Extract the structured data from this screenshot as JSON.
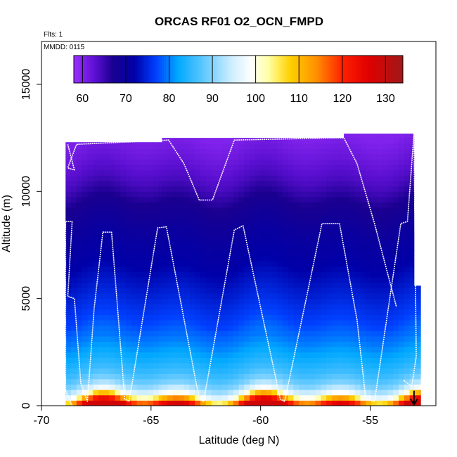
{
  "chart_data": {
    "type": "heatmap",
    "title": "ORCAS RF01 O2_OCN_FMPD",
    "xlabel": "Latitude (deg N)",
    "ylabel": "Altitude (m)",
    "xlim": [
      -70,
      -52
    ],
    "ylim": [
      0,
      17000
    ],
    "x_ticks": [
      -70,
      -65,
      -60,
      -55
    ],
    "x_tick_labels": [
      "-70",
      "-65",
      "-60",
      "-55"
    ],
    "y_ticks": [
      0,
      5000,
      10000,
      15000
    ],
    "y_tick_labels": [
      "0",
      "5000",
      "10000",
      "15000"
    ],
    "flights_label": "Flts: 1",
    "date_label": "MMDD: 0115",
    "colorbar": {
      "min": 58,
      "max": 134,
      "ticks": [
        60,
        70,
        80,
        90,
        100,
        110,
        120,
        130
      ],
      "tick_labels": [
        "60",
        "70",
        "80",
        "90",
        "100",
        "110",
        "120",
        "130"
      ],
      "stops": [
        {
          "value": 58,
          "color": "#9b30ff"
        },
        {
          "value": 63,
          "color": "#5a0fd0"
        },
        {
          "value": 67,
          "color": "#1a0090"
        },
        {
          "value": 72,
          "color": "#0000a8"
        },
        {
          "value": 77,
          "color": "#0040ff"
        },
        {
          "value": 82,
          "color": "#00a8ff"
        },
        {
          "value": 88,
          "color": "#60c8ff"
        },
        {
          "value": 94,
          "color": "#c8ecff"
        },
        {
          "value": 99,
          "color": "#ffffff"
        },
        {
          "value": 103,
          "color": "#ffffa0"
        },
        {
          "value": 108,
          "color": "#ffd000"
        },
        {
          "value": 114,
          "color": "#ff9000"
        },
        {
          "value": 120,
          "color": "#ff2000"
        },
        {
          "value": 126,
          "color": "#e00000"
        },
        {
          "value": 134,
          "color": "#a01818"
        }
      ]
    },
    "curtain_segments": [
      {
        "lat_start": -68.9,
        "lat_end": -64.5,
        "alt_top": 12300
      },
      {
        "lat_start": -64.5,
        "lat_end": -56.2,
        "alt_top": 12500
      },
      {
        "lat_start": -56.2,
        "lat_end": -53.0,
        "alt_top": 12700
      },
      {
        "lat_start": -53.0,
        "lat_end": -52.7,
        "alt_top": 5600
      }
    ],
    "value_profile": [
      {
        "alt": 0,
        "value": 128
      },
      {
        "alt": 150,
        "value": 120
      },
      {
        "alt": 300,
        "value": 112
      },
      {
        "alt": 500,
        "value": 100
      },
      {
        "alt": 700,
        "value": 95
      },
      {
        "alt": 1000,
        "value": 90
      },
      {
        "alt": 1500,
        "value": 86
      },
      {
        "alt": 2200,
        "value": 83
      },
      {
        "alt": 3000,
        "value": 80
      },
      {
        "alt": 4000,
        "value": 77
      },
      {
        "alt": 5000,
        "value": 75
      },
      {
        "alt": 6500,
        "value": 72
      },
      {
        "alt": 8000,
        "value": 70
      },
      {
        "alt": 9500,
        "value": 67
      },
      {
        "alt": 10500,
        "value": 64
      },
      {
        "alt": 11500,
        "value": 62
      },
      {
        "alt": 12700,
        "value": 60
      }
    ],
    "flight_track": [
      [
        -68.6,
        0
      ],
      [
        -68.9,
        700
      ],
      [
        -68.9,
        8600
      ],
      [
        -68.6,
        8600
      ],
      [
        -68.8,
        5100
      ],
      [
        -68.5,
        5000
      ],
      [
        -68.2,
        1000
      ],
      [
        -67.9,
        200
      ],
      [
        -67.6,
        4500
      ],
      [
        -67.2,
        8100
      ],
      [
        -66.8,
        8100
      ],
      [
        -66.2,
        300
      ],
      [
        -66.0,
        200
      ],
      [
        -64.7,
        8300
      ],
      [
        -64.3,
        8350
      ],
      [
        -62.8,
        300
      ],
      [
        -62.6,
        200
      ],
      [
        -61.2,
        8200
      ],
      [
        -60.8,
        8400
      ],
      [
        -59.1,
        300
      ],
      [
        -58.9,
        200
      ],
      [
        -57.2,
        8500
      ],
      [
        -56.4,
        8500
      ],
      [
        -55.6,
        4000
      ],
      [
        -55.2,
        300
      ],
      [
        -54.8,
        200
      ],
      [
        -53.6,
        8500
      ],
      [
        -53.3,
        8600
      ],
      [
        -53.0,
        12700
      ],
      [
        -52.9,
        2300
      ],
      [
        -53.1,
        900
      ],
      [
        -53.5,
        1200
      ]
    ],
    "upper_track": [
      [
        -68.8,
        12200
      ],
      [
        -68.5,
        11000
      ],
      [
        -68.8,
        11100
      ],
      [
        -68.4,
        12200
      ],
      [
        -64.2,
        12400
      ],
      [
        -63.5,
        11300
      ],
      [
        -62.8,
        9600
      ],
      [
        -62.2,
        9600
      ],
      [
        -61.2,
        12400
      ],
      [
        -56.6,
        12500
      ],
      [
        -56.2,
        12500
      ],
      [
        -55.6,
        11300
      ],
      [
        -54.8,
        8500
      ],
      [
        -53.8,
        4600
      ]
    ],
    "arrow": {
      "lat": -53.0,
      "alt_from": 700,
      "alt_to": 50
    }
  }
}
